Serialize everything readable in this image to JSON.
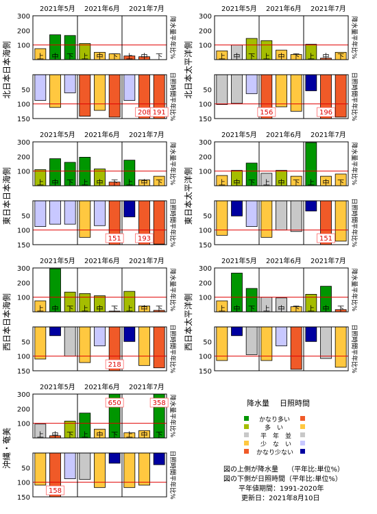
{
  "chart_data": [
    {
      "type": "bar",
      "region": "北日本日本海側",
      "months": [
        "2021年5月",
        "2021年6月",
        "2021年7月"
      ],
      "periods": [
        "上",
        "中",
        "下",
        "上",
        "中",
        "下",
        "上",
        "中",
        "下"
      ],
      "precip": [
        75,
        170,
        165,
        110,
        50,
        40,
        25,
        20,
        0
      ],
      "precip_ylim": [
        0,
        300
      ],
      "precip_ticks": [
        100,
        200,
        300
      ],
      "precip_ylabel": "降水量平年比%",
      "sun": [
        88,
        112,
        62,
        142,
        122,
        145,
        88,
        208,
        191
      ],
      "sun_ylim": [
        0,
        150
      ],
      "sun_ticks": [
        50,
        100,
        150
      ],
      "sun_ylabel": "日照時間平年比%",
      "sun_labels": [
        {
          "index": 7,
          "text": "208"
        },
        {
          "index": 8,
          "text": "191"
        }
      ]
    },
    {
      "type": "bar",
      "region": "北日本太平洋側",
      "months": [
        "2021年5月",
        "2021年6月",
        "2021年7月"
      ],
      "periods": [
        "上",
        "中",
        "下",
        "上",
        "中",
        "下",
        "上",
        "中",
        "下"
      ],
      "precip": [
        60,
        100,
        145,
        130,
        65,
        35,
        105,
        10,
        50
      ],
      "precip_ylim": [
        0,
        300
      ],
      "precip_ticks": [
        100,
        200,
        300
      ],
      "precip_ylabel": "降水量平年比%",
      "sun": [
        102,
        98,
        65,
        156,
        110,
        125,
        55,
        196,
        145
      ],
      "sun_ylim": [
        0,
        150
      ],
      "sun_ticks": [
        50,
        100,
        150
      ],
      "sun_ylabel": "日照時間平年比%",
      "sun_labels": [
        {
          "index": 3,
          "text": "156"
        },
        {
          "index": 7,
          "text": "196"
        }
      ]
    },
    {
      "type": "bar",
      "region": "東日本日本海側",
      "months": [
        "2021年5月",
        "2021年6月",
        "2021年7月"
      ],
      "periods": [
        "上",
        "中",
        "下",
        "上",
        "中",
        "下",
        "上",
        "中",
        "下"
      ],
      "precip": [
        110,
        185,
        160,
        195,
        115,
        25,
        175,
        40,
        65
      ],
      "precip_ylim": [
        0,
        300
      ],
      "precip_ticks": [
        100,
        200,
        300
      ],
      "precip_ylabel": "降水量平年比%",
      "sun": [
        88,
        80,
        80,
        125,
        85,
        151,
        55,
        193,
        148
      ],
      "sun_ylim": [
        0,
        150
      ],
      "sun_ticks": [
        50,
        100,
        150
      ],
      "sun_ylabel": "日照時間平年比%",
      "sun_labels": [
        {
          "index": 5,
          "text": "151"
        },
        {
          "index": 7,
          "text": "193"
        }
      ]
    },
    {
      "type": "bar",
      "region": "東日本太平洋側",
      "months": [
        "2021年5月",
        "2021年6月",
        "2021年7月"
      ],
      "periods": [
        "上",
        "中",
        "下",
        "上",
        "中",
        "下",
        "上",
        "中",
        "下"
      ],
      "precip": [
        70,
        105,
        155,
        85,
        105,
        65,
        295,
        65,
        80
      ],
      "precip_ylim": [
        0,
        300
      ],
      "precip_ticks": [
        100,
        200,
        300
      ],
      "precip_ylabel": "降水量平年比%",
      "sun": [
        118,
        52,
        88,
        125,
        100,
        105,
        35,
        151,
        138
      ],
      "sun_ylim": [
        0,
        150
      ],
      "sun_ticks": [
        50,
        100,
        150
      ],
      "sun_ylabel": "日照時間平年比%",
      "sun_labels": [
        {
          "index": 7,
          "text": "151"
        }
      ]
    },
    {
      "type": "bar",
      "region": "西日本日本海側",
      "months": [
        "2021年5月",
        "2021年6月",
        "2021年7月"
      ],
      "periods": [
        "上",
        "中",
        "下",
        "上",
        "中",
        "下",
        "上",
        "中",
        "下"
      ],
      "precip": [
        75,
        295,
        135,
        125,
        110,
        5,
        140,
        40,
        10
      ],
      "precip_ylim": [
        0,
        300
      ],
      "precip_ticks": [
        100,
        200,
        300
      ],
      "precip_ylabel": "降水量平年比%",
      "sun": [
        110,
        30,
        100,
        122,
        65,
        218,
        50,
        132,
        140
      ],
      "sun_ylim": [
        0,
        150
      ],
      "sun_ticks": [
        50,
        100,
        150
      ],
      "sun_ylabel": "日照時間平年比%",
      "sun_labels": [
        {
          "index": 5,
          "text": "218"
        }
      ]
    },
    {
      "type": "bar",
      "region": "西日本太平洋側",
      "months": [
        "2021年5月",
        "2021年6月",
        "2021年7月"
      ],
      "periods": [
        "上",
        "中",
        "下",
        "上",
        "中",
        "下",
        "上",
        "中",
        "下"
      ],
      "precip": [
        75,
        265,
        160,
        100,
        95,
        35,
        120,
        175,
        15
      ],
      "precip_ylim": [
        0,
        300
      ],
      "precip_ticks": [
        100,
        200,
        300
      ],
      "precip_ylabel": "降水量平年比%",
      "sun": [
        115,
        30,
        95,
        115,
        65,
        145,
        50,
        108,
        138
      ],
      "sun_ylim": [
        0,
        150
      ],
      "sun_ticks": [
        50,
        100,
        150
      ],
      "sun_ylabel": "日照時間平年比%",
      "sun_labels": []
    },
    {
      "type": "bar",
      "region": "沖縄・奄美",
      "months": [
        "2021年5月",
        "2021年6月",
        "2021年7月"
      ],
      "periods": [
        "上",
        "中",
        "下",
        "上",
        "中",
        "下",
        "上",
        "中",
        "下"
      ],
      "precip": [
        95,
        15,
        115,
        170,
        60,
        650,
        35,
        50,
        358
      ],
      "precip_ylim": [
        0,
        300
      ],
      "precip_ticks": [
        100,
        200,
        300
      ],
      "precip_ylabel": "降水量平年比%",
      "sun": [
        110,
        158,
        88,
        90,
        118,
        35,
        118,
        110,
        40
      ],
      "sun_ylim": [
        0,
        150
      ],
      "sun_ticks": [
        50,
        100,
        150
      ],
      "sun_ylabel": "日照時間平年比%",
      "precip_labels": [
        {
          "index": 5,
          "text": "650"
        },
        {
          "index": 8,
          "text": "358"
        }
      ],
      "sun_labels": [
        {
          "index": 1,
          "text": "158"
        }
      ]
    }
  ],
  "legend": {
    "precip_header": "降水量",
    "sun_header": "日照時間",
    "rows": [
      {
        "label": "かなり多い",
        "precip_color": "#009600",
        "sun_color": "#f05a28"
      },
      {
        "label": "多　い",
        "precip_color": "#a5bd00",
        "sun_color": "#ffc840"
      },
      {
        "label": "平　年　並",
        "precip_color": "#c8c8c8",
        "sun_color": "#c8c8c8"
      },
      {
        "label": "少　な　い",
        "precip_color": "#ffc840",
        "sun_color": "#c8c8ff"
      },
      {
        "label": "かなり少ない",
        "precip_color": "#f05a28",
        "sun_color": "#0000a0"
      }
    ]
  },
  "notes": {
    "line1": "図の上側が降水量　 （平年比:単位%）",
    "line2": "図の下側が日照時間（平年比:単位%）",
    "line3": "平年値期間：1991-2020年",
    "line4": "更新日：2021年8月10日"
  },
  "colors": {
    "reference_line": "#e00000",
    "precip_scheme": "precip_color",
    "sun_scheme": "sun_color"
  }
}
